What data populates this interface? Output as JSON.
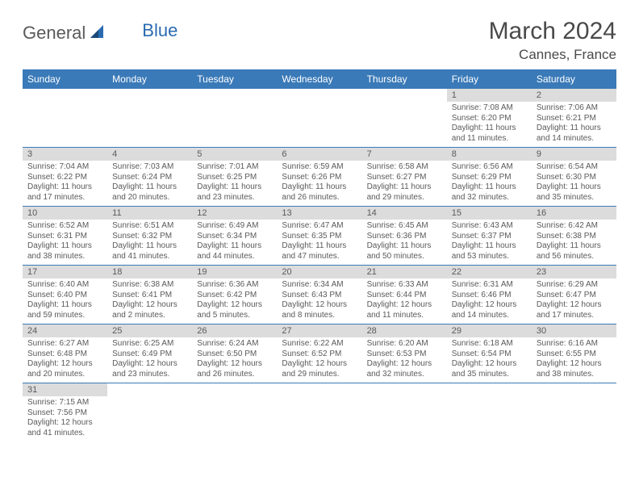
{
  "logo": {
    "general": "General",
    "blue": "Blue"
  },
  "title": "March 2024",
  "location": "Cannes, France",
  "colors": {
    "header_bg": "#3a7ab8",
    "header_text": "#ffffff",
    "daynum_bg": "#dcdcdc",
    "text": "#5a5a5a",
    "row_border": "#3a7ab8",
    "logo_gray": "#5a5a5a",
    "logo_blue": "#2a6bb0"
  },
  "day_headers": [
    "Sunday",
    "Monday",
    "Tuesday",
    "Wednesday",
    "Thursday",
    "Friday",
    "Saturday"
  ],
  "weeks": [
    [
      null,
      null,
      null,
      null,
      null,
      {
        "n": "1",
        "sunrise": "Sunrise: 7:08 AM",
        "sunset": "Sunset: 6:20 PM",
        "daylight": "Daylight: 11 hours and 11 minutes."
      },
      {
        "n": "2",
        "sunrise": "Sunrise: 7:06 AM",
        "sunset": "Sunset: 6:21 PM",
        "daylight": "Daylight: 11 hours and 14 minutes."
      }
    ],
    [
      {
        "n": "3",
        "sunrise": "Sunrise: 7:04 AM",
        "sunset": "Sunset: 6:22 PM",
        "daylight": "Daylight: 11 hours and 17 minutes."
      },
      {
        "n": "4",
        "sunrise": "Sunrise: 7:03 AM",
        "sunset": "Sunset: 6:24 PM",
        "daylight": "Daylight: 11 hours and 20 minutes."
      },
      {
        "n": "5",
        "sunrise": "Sunrise: 7:01 AM",
        "sunset": "Sunset: 6:25 PM",
        "daylight": "Daylight: 11 hours and 23 minutes."
      },
      {
        "n": "6",
        "sunrise": "Sunrise: 6:59 AM",
        "sunset": "Sunset: 6:26 PM",
        "daylight": "Daylight: 11 hours and 26 minutes."
      },
      {
        "n": "7",
        "sunrise": "Sunrise: 6:58 AM",
        "sunset": "Sunset: 6:27 PM",
        "daylight": "Daylight: 11 hours and 29 minutes."
      },
      {
        "n": "8",
        "sunrise": "Sunrise: 6:56 AM",
        "sunset": "Sunset: 6:29 PM",
        "daylight": "Daylight: 11 hours and 32 minutes."
      },
      {
        "n": "9",
        "sunrise": "Sunrise: 6:54 AM",
        "sunset": "Sunset: 6:30 PM",
        "daylight": "Daylight: 11 hours and 35 minutes."
      }
    ],
    [
      {
        "n": "10",
        "sunrise": "Sunrise: 6:52 AM",
        "sunset": "Sunset: 6:31 PM",
        "daylight": "Daylight: 11 hours and 38 minutes."
      },
      {
        "n": "11",
        "sunrise": "Sunrise: 6:51 AM",
        "sunset": "Sunset: 6:32 PM",
        "daylight": "Daylight: 11 hours and 41 minutes."
      },
      {
        "n": "12",
        "sunrise": "Sunrise: 6:49 AM",
        "sunset": "Sunset: 6:34 PM",
        "daylight": "Daylight: 11 hours and 44 minutes."
      },
      {
        "n": "13",
        "sunrise": "Sunrise: 6:47 AM",
        "sunset": "Sunset: 6:35 PM",
        "daylight": "Daylight: 11 hours and 47 minutes."
      },
      {
        "n": "14",
        "sunrise": "Sunrise: 6:45 AM",
        "sunset": "Sunset: 6:36 PM",
        "daylight": "Daylight: 11 hours and 50 minutes."
      },
      {
        "n": "15",
        "sunrise": "Sunrise: 6:43 AM",
        "sunset": "Sunset: 6:37 PM",
        "daylight": "Daylight: 11 hours and 53 minutes."
      },
      {
        "n": "16",
        "sunrise": "Sunrise: 6:42 AM",
        "sunset": "Sunset: 6:38 PM",
        "daylight": "Daylight: 11 hours and 56 minutes."
      }
    ],
    [
      {
        "n": "17",
        "sunrise": "Sunrise: 6:40 AM",
        "sunset": "Sunset: 6:40 PM",
        "daylight": "Daylight: 11 hours and 59 minutes."
      },
      {
        "n": "18",
        "sunrise": "Sunrise: 6:38 AM",
        "sunset": "Sunset: 6:41 PM",
        "daylight": "Daylight: 12 hours and 2 minutes."
      },
      {
        "n": "19",
        "sunrise": "Sunrise: 6:36 AM",
        "sunset": "Sunset: 6:42 PM",
        "daylight": "Daylight: 12 hours and 5 minutes."
      },
      {
        "n": "20",
        "sunrise": "Sunrise: 6:34 AM",
        "sunset": "Sunset: 6:43 PM",
        "daylight": "Daylight: 12 hours and 8 minutes."
      },
      {
        "n": "21",
        "sunrise": "Sunrise: 6:33 AM",
        "sunset": "Sunset: 6:44 PM",
        "daylight": "Daylight: 12 hours and 11 minutes."
      },
      {
        "n": "22",
        "sunrise": "Sunrise: 6:31 AM",
        "sunset": "Sunset: 6:46 PM",
        "daylight": "Daylight: 12 hours and 14 minutes."
      },
      {
        "n": "23",
        "sunrise": "Sunrise: 6:29 AM",
        "sunset": "Sunset: 6:47 PM",
        "daylight": "Daylight: 12 hours and 17 minutes."
      }
    ],
    [
      {
        "n": "24",
        "sunrise": "Sunrise: 6:27 AM",
        "sunset": "Sunset: 6:48 PM",
        "daylight": "Daylight: 12 hours and 20 minutes."
      },
      {
        "n": "25",
        "sunrise": "Sunrise: 6:25 AM",
        "sunset": "Sunset: 6:49 PM",
        "daylight": "Daylight: 12 hours and 23 minutes."
      },
      {
        "n": "26",
        "sunrise": "Sunrise: 6:24 AM",
        "sunset": "Sunset: 6:50 PM",
        "daylight": "Daylight: 12 hours and 26 minutes."
      },
      {
        "n": "27",
        "sunrise": "Sunrise: 6:22 AM",
        "sunset": "Sunset: 6:52 PM",
        "daylight": "Daylight: 12 hours and 29 minutes."
      },
      {
        "n": "28",
        "sunrise": "Sunrise: 6:20 AM",
        "sunset": "Sunset: 6:53 PM",
        "daylight": "Daylight: 12 hours and 32 minutes."
      },
      {
        "n": "29",
        "sunrise": "Sunrise: 6:18 AM",
        "sunset": "Sunset: 6:54 PM",
        "daylight": "Daylight: 12 hours and 35 minutes."
      },
      {
        "n": "30",
        "sunrise": "Sunrise: 6:16 AM",
        "sunset": "Sunset: 6:55 PM",
        "daylight": "Daylight: 12 hours and 38 minutes."
      }
    ],
    [
      {
        "n": "31",
        "sunrise": "Sunrise: 7:15 AM",
        "sunset": "Sunset: 7:56 PM",
        "daylight": "Daylight: 12 hours and 41 minutes."
      },
      null,
      null,
      null,
      null,
      null,
      null
    ]
  ]
}
